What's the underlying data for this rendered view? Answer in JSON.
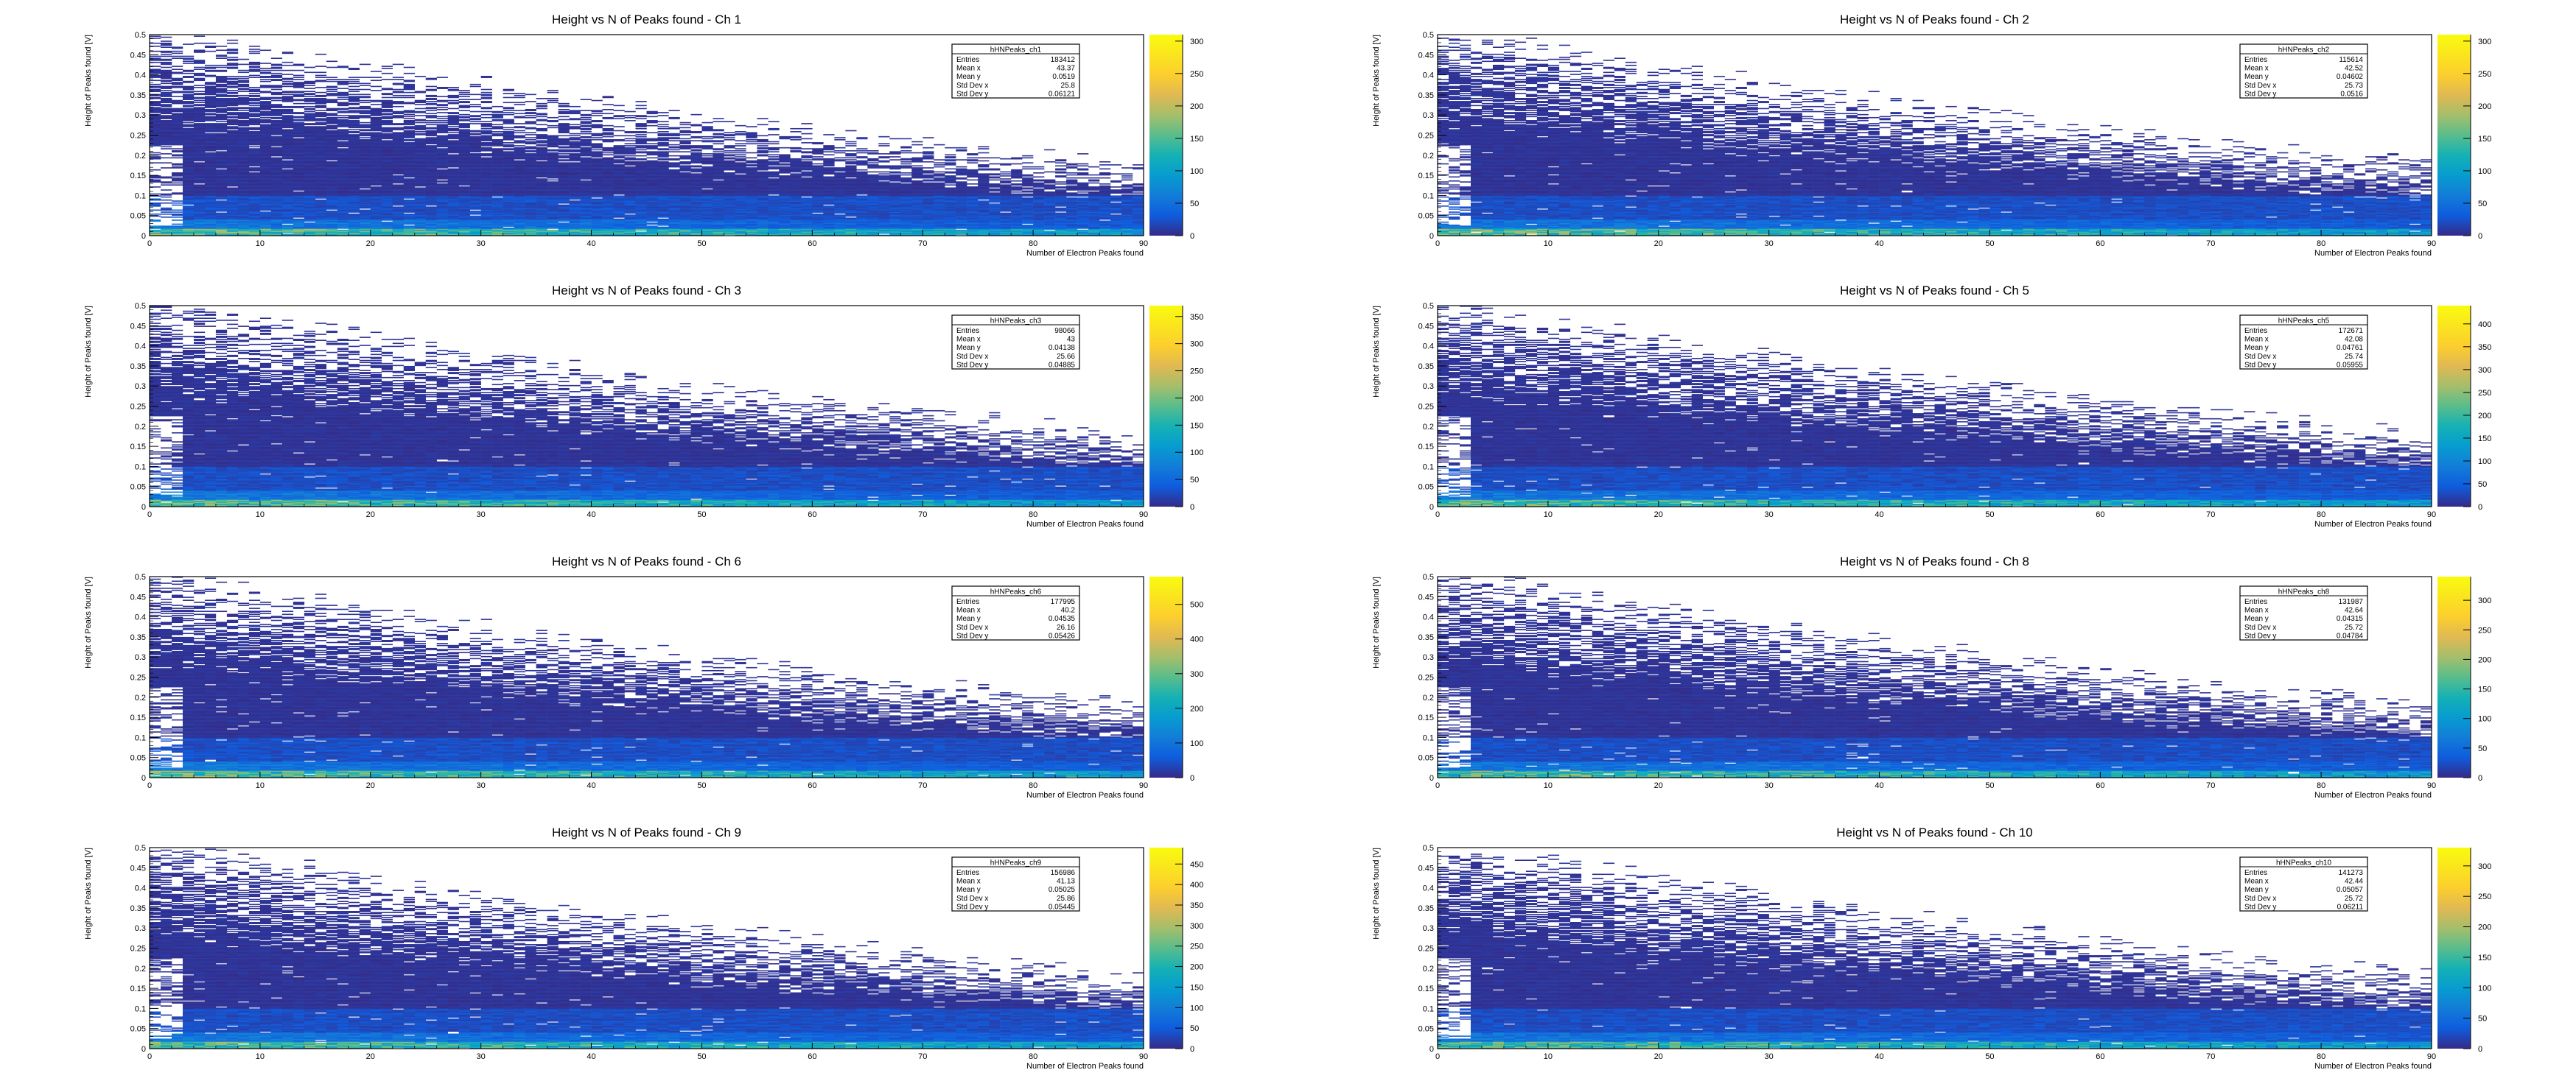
{
  "chart_data": [
    {
      "type": "heatmap",
      "title": "Height vs N of Peaks found - Ch 1",
      "xlabel": "Number of Electron Peaks found",
      "ylabel": "Height of Peaks found [V]",
      "xlim": [
        0,
        90
      ],
      "ylim": [
        0,
        0.5
      ],
      "x_ticks": [
        "0",
        "10",
        "20",
        "30",
        "40",
        "50",
        "60",
        "70",
        "80",
        "90"
      ],
      "y_ticks": [
        "0",
        "0.05",
        "0.1",
        "0.15",
        "0.2",
        "0.25",
        "0.3",
        "0.35",
        "0.4",
        "0.45",
        "0.5"
      ],
      "z_ticks": [
        "0",
        "50",
        "100",
        "150",
        "200",
        "250",
        "300"
      ],
      "zmax": 310,
      "stats": {
        "name": "hHNPeaks_ch1",
        "entries": "183412",
        "mean_x": "43.37",
        "mean_y": "0.0519",
        "std_x": "25.8",
        "std_y": "0.06121"
      }
    },
    {
      "type": "heatmap",
      "title": "Height vs N of Peaks found - Ch 2",
      "xlabel": "Number of Electron Peaks found",
      "ylabel": "Height of Peaks found [V]",
      "xlim": [
        0,
        90
      ],
      "ylim": [
        0,
        0.5
      ],
      "x_ticks": [
        "0",
        "10",
        "20",
        "30",
        "40",
        "50",
        "60",
        "70",
        "80",
        "90"
      ],
      "y_ticks": [
        "0",
        "0.05",
        "0.1",
        "0.15",
        "0.2",
        "0.25",
        "0.3",
        "0.35",
        "0.4",
        "0.45",
        "0.5"
      ],
      "z_ticks": [
        "0",
        "50",
        "100",
        "150",
        "200",
        "250",
        "300"
      ],
      "zmax": 310,
      "stats": {
        "name": "hHNPeaks_ch2",
        "entries": "115614",
        "mean_x": "42.52",
        "mean_y": "0.04602",
        "std_x": "25.73",
        "std_y": "0.0516"
      }
    },
    {
      "type": "heatmap",
      "title": "Height vs N of Peaks found - Ch 3",
      "xlabel": "Number of Electron Peaks found",
      "ylabel": "Height of Peaks found [V]",
      "xlim": [
        0,
        90
      ],
      "ylim": [
        0,
        0.5
      ],
      "x_ticks": [
        "0",
        "10",
        "20",
        "30",
        "40",
        "50",
        "60",
        "70",
        "80",
        "90"
      ],
      "y_ticks": [
        "0",
        "0.05",
        "0.1",
        "0.15",
        "0.2",
        "0.25",
        "0.3",
        "0.35",
        "0.4",
        "0.45",
        "0.5"
      ],
      "z_ticks": [
        "0",
        "50",
        "100",
        "150",
        "200",
        "250",
        "300",
        "350"
      ],
      "zmax": 370,
      "stats": {
        "name": "hHNPeaks_ch3",
        "entries": "98066",
        "mean_x": "43",
        "mean_y": "0.04138",
        "std_x": "25.66",
        "std_y": "0.04885"
      }
    },
    {
      "type": "heatmap",
      "title": "Height vs N of Peaks found - Ch 5",
      "xlabel": "Number of Electron Peaks found",
      "ylabel": "Height of Peaks found [V]",
      "xlim": [
        0,
        90
      ],
      "ylim": [
        0,
        0.5
      ],
      "x_ticks": [
        "0",
        "10",
        "20",
        "30",
        "40",
        "50",
        "60",
        "70",
        "80",
        "90"
      ],
      "y_ticks": [
        "0",
        "0.05",
        "0.1",
        "0.15",
        "0.2",
        "0.25",
        "0.3",
        "0.35",
        "0.4",
        "0.45",
        "0.5"
      ],
      "z_ticks": [
        "0",
        "50",
        "100",
        "150",
        "200",
        "250",
        "300",
        "350",
        "400"
      ],
      "zmax": 440,
      "stats": {
        "name": "hHNPeaks_ch5",
        "entries": "172671",
        "mean_x": "42.08",
        "mean_y": "0.04761",
        "std_x": "25.74",
        "std_y": "0.05955"
      }
    },
    {
      "type": "heatmap",
      "title": "Height vs N of Peaks found - Ch 6",
      "xlabel": "Number of Electron Peaks found",
      "ylabel": "Height of Peaks found [V]",
      "xlim": [
        0,
        90
      ],
      "ylim": [
        0,
        0.5
      ],
      "x_ticks": [
        "0",
        "10",
        "20",
        "30",
        "40",
        "50",
        "60",
        "70",
        "80",
        "90"
      ],
      "y_ticks": [
        "0",
        "0.05",
        "0.1",
        "0.15",
        "0.2",
        "0.25",
        "0.3",
        "0.35",
        "0.4",
        "0.45",
        "0.5"
      ],
      "z_ticks": [
        "0",
        "100",
        "200",
        "300",
        "400",
        "500"
      ],
      "zmax": 580,
      "stats": {
        "name": "hHNPeaks_ch6",
        "entries": "177995",
        "mean_x": "40.2",
        "mean_y": "0.04535",
        "std_x": "26.16",
        "std_y": "0.05426"
      }
    },
    {
      "type": "heatmap",
      "title": "Height vs N of Peaks found - Ch 8",
      "xlabel": "Number of Electron Peaks found",
      "ylabel": "Height of Peaks found [V]",
      "xlim": [
        0,
        90
      ],
      "ylim": [
        0,
        0.5
      ],
      "x_ticks": [
        "0",
        "10",
        "20",
        "30",
        "40",
        "50",
        "60",
        "70",
        "80",
        "90"
      ],
      "y_ticks": [
        "0",
        "0.05",
        "0.1",
        "0.15",
        "0.2",
        "0.25",
        "0.3",
        "0.35",
        "0.4",
        "0.45",
        "0.5"
      ],
      "z_ticks": [
        "0",
        "50",
        "100",
        "150",
        "200",
        "250",
        "300"
      ],
      "zmax": 340,
      "stats": {
        "name": "hHNPeaks_ch8",
        "entries": "131987",
        "mean_x": "42.64",
        "mean_y": "0.04315",
        "std_x": "25.72",
        "std_y": "0.04784"
      }
    },
    {
      "type": "heatmap",
      "title": "Height vs N of Peaks found - Ch 9",
      "xlabel": "Number of Electron Peaks found",
      "ylabel": "Height of Peaks found [V]",
      "xlim": [
        0,
        90
      ],
      "ylim": [
        0,
        0.5
      ],
      "x_ticks": [
        "0",
        "10",
        "20",
        "30",
        "40",
        "50",
        "60",
        "70",
        "80",
        "90"
      ],
      "y_ticks": [
        "0",
        "0.05",
        "0.1",
        "0.15",
        "0.2",
        "0.25",
        "0.3",
        "0.35",
        "0.4",
        "0.45",
        "0.5"
      ],
      "z_ticks": [
        "0",
        "50",
        "100",
        "150",
        "200",
        "250",
        "300",
        "350",
        "400",
        "450"
      ],
      "zmax": 490,
      "stats": {
        "name": "hHNPeaks_ch9",
        "entries": "156986",
        "mean_x": "41.13",
        "mean_y": "0.05025",
        "std_x": "25.86",
        "std_y": "0.05445"
      }
    },
    {
      "type": "heatmap",
      "title": "Height vs N of Peaks found - Ch 10",
      "xlabel": "Number of Electron Peaks found",
      "ylabel": "Height of Peaks found [V]",
      "xlim": [
        0,
        90
      ],
      "ylim": [
        0,
        0.5
      ],
      "x_ticks": [
        "0",
        "10",
        "20",
        "30",
        "40",
        "50",
        "60",
        "70",
        "80",
        "90"
      ],
      "y_ticks": [
        "0",
        "0.05",
        "0.1",
        "0.15",
        "0.2",
        "0.25",
        "0.3",
        "0.35",
        "0.4",
        "0.45",
        "0.5"
      ],
      "z_ticks": [
        "0",
        "50",
        "100",
        "150",
        "200",
        "250",
        "300"
      ],
      "zmax": 330,
      "stats": {
        "name": "hHNPeaks_ch10",
        "entries": "141273",
        "mean_x": "42.44",
        "mean_y": "0.05057",
        "std_x": "25.72",
        "std_y": "0.06211"
      }
    }
  ],
  "stats_labels": {
    "entries": "Entries",
    "mean_x": "Mean x",
    "mean_y": "Mean y",
    "std_x": "Std Dev x",
    "std_y": "Std Dev y"
  }
}
